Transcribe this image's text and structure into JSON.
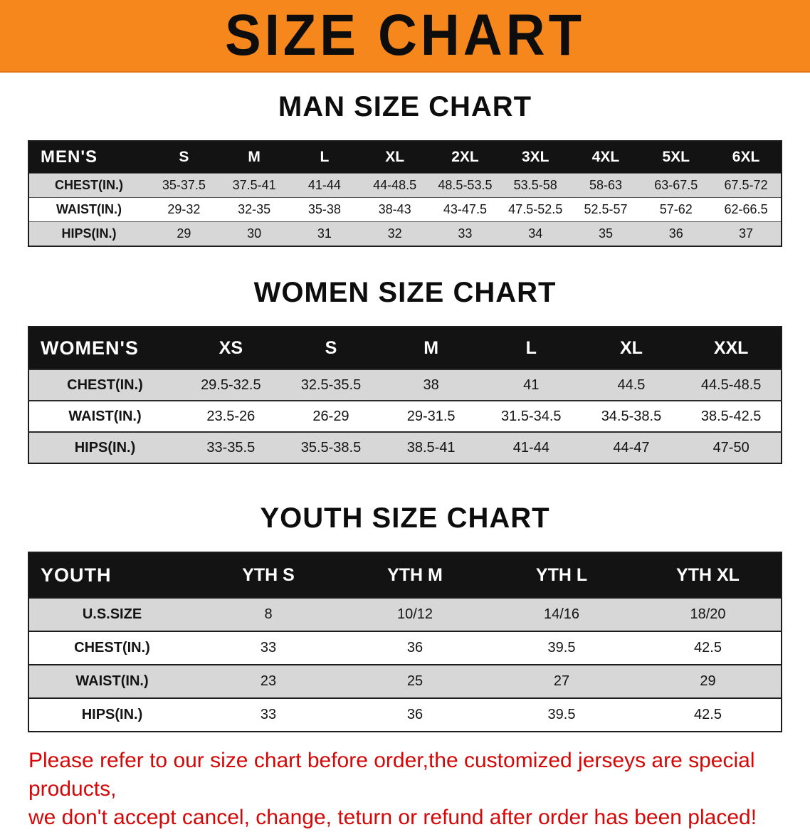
{
  "banner": {
    "title": "SIZE CHART"
  },
  "colors": {
    "banner_bg": "#f6871d",
    "table_header_bg": "#131313",
    "row_gray": "#d7d7d7",
    "disclaimer_red": "#d40808"
  },
  "sections": [
    {
      "id": "men",
      "heading": "MAN SIZE CHART",
      "table": {
        "header_label": "MEN'S",
        "columns": [
          "S",
          "M",
          "L",
          "XL",
          "2XL",
          "3XL",
          "4XL",
          "5XL",
          "6XL"
        ],
        "rows": [
          {
            "label": "CHEST(IN.)",
            "values": [
              "35-37.5",
              "37.5-41",
              "41-44",
              "44-48.5",
              "48.5-53.5",
              "53.5-58",
              "58-63",
              "63-67.5",
              "67.5-72"
            ]
          },
          {
            "label": "WAIST(IN.)",
            "values": [
              "29-32",
              "32-35",
              "35-38",
              "38-43",
              "43-47.5",
              "47.5-52.5",
              "52.5-57",
              "57-62",
              "62-66.5"
            ]
          },
          {
            "label": "HIPS(IN.)",
            "values": [
              "29",
              "30",
              "31",
              "32",
              "33",
              "34",
              "35",
              "36",
              "37"
            ]
          }
        ]
      }
    },
    {
      "id": "women",
      "heading": "WOMEN SIZE CHART",
      "table": {
        "header_label": "WOMEN'S",
        "columns": [
          "XS",
          "S",
          "M",
          "L",
          "XL",
          "XXL"
        ],
        "rows": [
          {
            "label": "CHEST(IN.)",
            "values": [
              "29.5-32.5",
              "32.5-35.5",
              "38",
              "41",
              "44.5",
              "44.5-48.5"
            ]
          },
          {
            "label": "WAIST(IN.)",
            "values": [
              "23.5-26",
              "26-29",
              "29-31.5",
              "31.5-34.5",
              "34.5-38.5",
              "38.5-42.5"
            ]
          },
          {
            "label": "HIPS(IN.)",
            "values": [
              "33-35.5",
              "35.5-38.5",
              "38.5-41",
              "41-44",
              "44-47",
              "47-50"
            ]
          }
        ]
      }
    },
    {
      "id": "youth",
      "heading": "YOUTH SIZE CHART",
      "table": {
        "header_label": "YOUTH",
        "columns": [
          "YTH S",
          "YTH M",
          "YTH L",
          "YTH XL"
        ],
        "rows": [
          {
            "label": "U.S.SIZE",
            "values": [
              "8",
              "10/12",
              "14/16",
              "18/20"
            ]
          },
          {
            "label": "CHEST(IN.)",
            "values": [
              "33",
              "36",
              "39.5",
              "42.5"
            ]
          },
          {
            "label": "WAIST(IN.)",
            "values": [
              "23",
              "25",
              "27",
              "29"
            ]
          },
          {
            "label": "HIPS(IN.)",
            "values": [
              "33",
              "36",
              "39.5",
              "42.5"
            ]
          }
        ]
      }
    }
  ],
  "disclaimer": {
    "line1": "Please refer to our size chart before order,the customized jerseys are special products,",
    "line2": "we don't accept cancel, change, teturn or refund after order has been placed!"
  }
}
